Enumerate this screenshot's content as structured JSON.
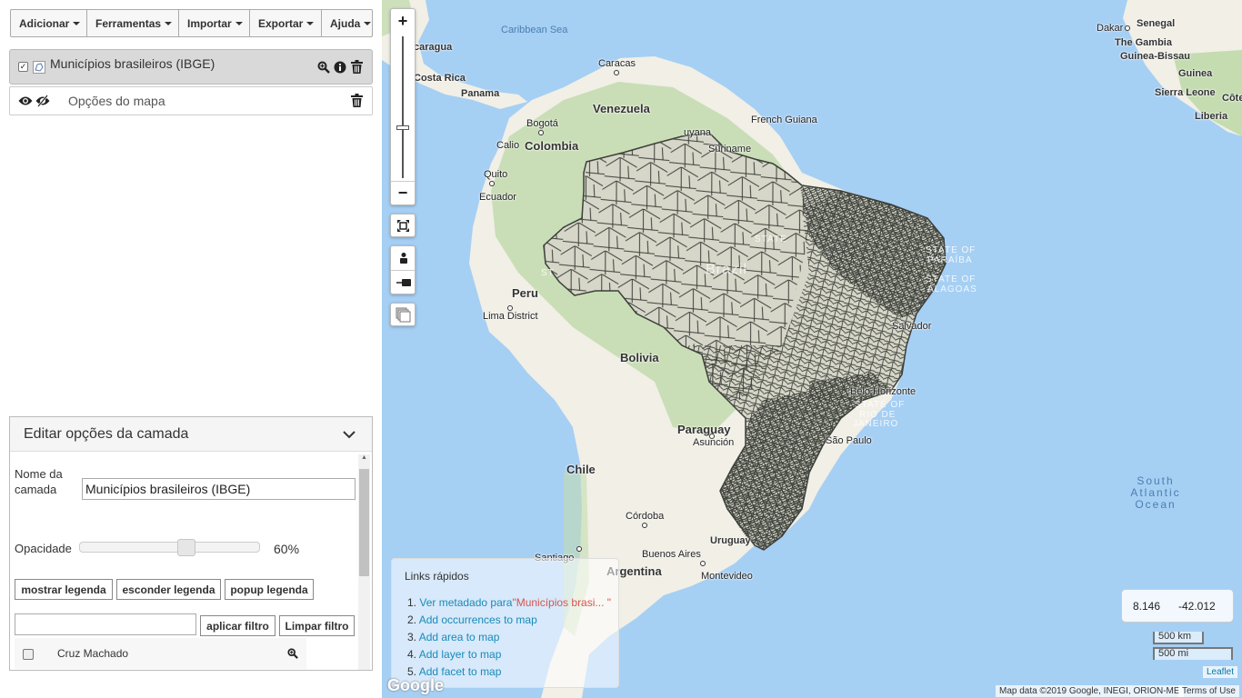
{
  "menubar": {
    "items": [
      {
        "label": "Adicionar"
      },
      {
        "label": "Ferramentas"
      },
      {
        "label": "Importar"
      },
      {
        "label": "Exportar"
      },
      {
        "label": "Ajuda"
      }
    ]
  },
  "layers": {
    "layer1_name": "Municípios brasileiros (IBGE)",
    "layer1_checked": "✓",
    "map_options_label": "Opções do mapa"
  },
  "edit_panel": {
    "title": "Editar opções da camada",
    "name_label": "Nome da camada",
    "name_value": "Municípios brasileiros (IBGE)",
    "opacity_label": "Opacidade",
    "opacity_value": "60%",
    "opacity_fraction": 0.6,
    "buttons": {
      "show_legend": "mostrar legenda",
      "hide_legend": "esconder legenda",
      "popup_legend": "popup legenda",
      "apply_filter": "aplicar filtro",
      "clear_filter": "Limpar filtro"
    },
    "filter_value": "",
    "list_items": [
      {
        "label": "Cruz Machado"
      }
    ]
  },
  "map": {
    "zoom_in": "+",
    "zoom_out": "−",
    "zoom_level_fraction": 0.35,
    "labels": {
      "countries": {
        "venezuela": "Venezuela",
        "colombia": "Colombia",
        "peru": "Peru",
        "bolivia": "Bolivia",
        "paraguay": "Paraguay",
        "chile": "Chile",
        "argentina": "Argentina",
        "uruguay": "Uruguay",
        "guyana": "uyana",
        "suriname": "Suriname",
        "french_guiana": "French Guiana",
        "brazil": "Brazil",
        "costa_rica": "Costa Rica",
        "panama": "Panama",
        "nicaragua": "caragua",
        "senegal": "Senegal",
        "gambia": "The Gambia",
        "guinea_bissau": "Guinea-Bissau",
        "guinea": "Guinea",
        "sierra_leone": "Sierra Leone",
        "liberia": "Liberia",
        "cote": "Côte"
      },
      "cities": {
        "caracas": "Caracas",
        "bogota": "Bogotá",
        "cali": "Calio",
        "quito": "Quito",
        "lima": "Lima District",
        "asuncion": "Asunción",
        "cordoba": "Córdoba",
        "santiago": "Santiago",
        "buenos_aires": "Buenos Aires",
        "montevideo": "Montevideo",
        "sao_paulo": "São Paulo",
        "belo_horizonte": "Belo Horizonte",
        "salvador": "Salvador",
        "dakar": "Dakar"
      },
      "regions": {
        "ecuador": "Ecuador",
        "caribbean": "Caribbean Sea",
        "ocean_l1": "South",
        "ocean_l2": "Atlantic",
        "ocean_l3": "Ocean",
        "paraiba_1": "STATE OF",
        "paraiba_2": "PARAÍBA",
        "alagoas_1": "STATE OF",
        "alagoas_2": "ALAGOAS",
        "rio_1": "STATE OF",
        "rio_2": "RIO DE",
        "rio_3": "JANEIRO",
        "amazonas_state": "ST",
        "estado": "STATE"
      }
    },
    "quick_links": {
      "title": "Links rápidos",
      "items": [
        {
          "num": "1.",
          "label": "Ver metadado para",
          "highlight": "\"Municípios brasi... \""
        },
        {
          "num": "2.",
          "label": "Add occurrences to map"
        },
        {
          "num": "3.",
          "label": "Add area to map"
        },
        {
          "num": "4.",
          "label": "Add layer to map"
        },
        {
          "num": "5.",
          "label": "Add facet to map"
        }
      ]
    },
    "coords": {
      "lat": "8.146",
      "lon": "-42.012"
    },
    "scale": {
      "km": "500 km",
      "mi": "500 mi"
    },
    "attribution": {
      "leaflet": "Leaflet",
      "map_data": "Map data ©2019 Google, INEGI, ORION-ME",
      "terms": "Terms of Use",
      "google": "Google"
    }
  },
  "colors": {
    "ocean": "#a6cff4",
    "land": "#f1efe6",
    "forest": "#c4dcb0",
    "link": "#1a8ab8",
    "highlight": "#d9534f",
    "municipality_lines": "#3c3f3a"
  }
}
